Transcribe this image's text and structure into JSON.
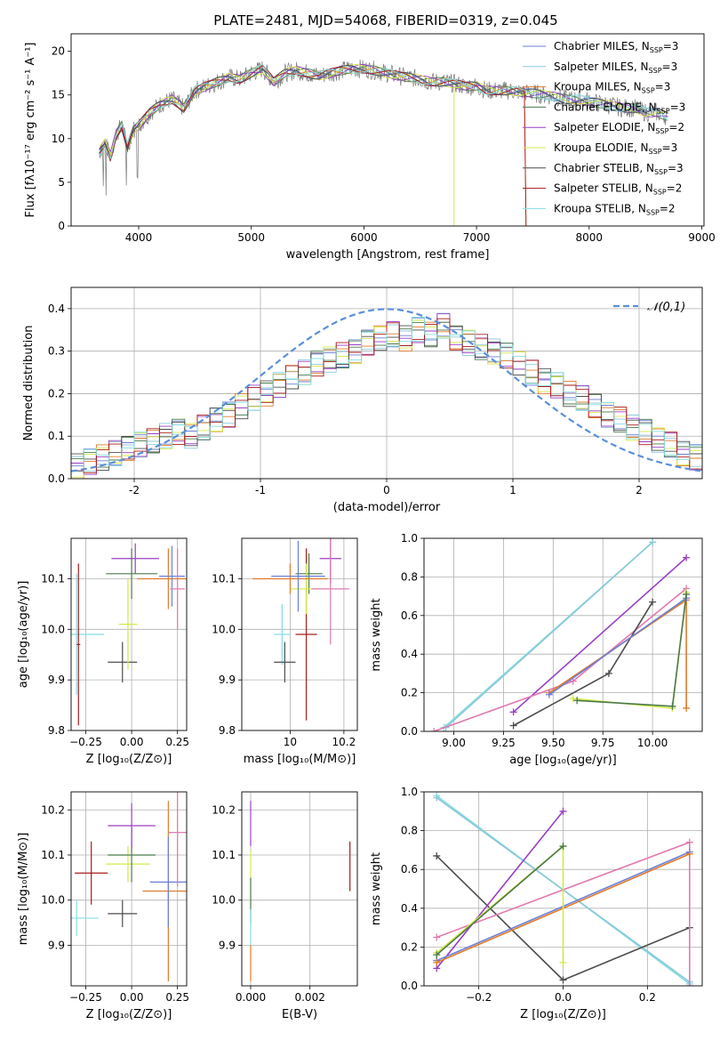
{
  "figure": {
    "title": "PLATE=2481, MJD=54068, FIBERID=0319, z=0.045"
  },
  "chart_data": [
    {
      "type": "line",
      "id": "spectrum",
      "xlabel": "wavelength [Angstrom, rest frame]",
      "ylabel": "Flux [fλ10⁻¹⁷ erg cm⁻² s⁻¹ A⁻¹]",
      "xlim": [
        3400,
        9020
      ],
      "ylim": [
        0,
        22
      ],
      "xticks": [
        4000,
        5000,
        6000,
        7000,
        8000,
        9000
      ],
      "yticks": [
        0,
        5,
        10,
        15,
        20
      ],
      "data_x": [
        3650,
        3700,
        3750,
        3800,
        3850,
        3900,
        3950,
        4000,
        4100,
        4200,
        4300,
        4400,
        4500,
        4600,
        4700,
        4800,
        4900,
        5000,
        5100,
        5200,
        5300,
        5400,
        5500,
        5600,
        5700,
        5800,
        5900,
        6000,
        6100,
        6200,
        6300,
        6400,
        6500,
        6600,
        6700,
        6800,
        6900,
        7000,
        7100,
        7200,
        7300,
        7400,
        7500,
        7600,
        7700,
        7800,
        7900,
        8000,
        8100,
        8200,
        8300,
        8400,
        8500,
        8600,
        8700
      ],
      "data_y": [
        8.5,
        9.5,
        8.0,
        10.5,
        11.5,
        9.0,
        11.0,
        11.5,
        13.0,
        14.0,
        14.5,
        13.5,
        15.5,
        16.0,
        16.5,
        17.0,
        16.8,
        17.5,
        18.0,
        16.5,
        17.5,
        17.8,
        17.5,
        17.2,
        17.5,
        17.8,
        18.0,
        18.0,
        17.8,
        17.5,
        17.2,
        17.0,
        16.8,
        16.5,
        16.5,
        16.3,
        16.0,
        16.0,
        15.5,
        15.5,
        15.5,
        15.3,
        15.2,
        15.0,
        14.8,
        14.5,
        14.5,
        14.3,
        14.0,
        13.8,
        13.5,
        13.5,
        13.0,
        13.0,
        12.5
      ],
      "legend_position": "top-right",
      "legend": [
        {
          "label": "Chabrier MILES, N",
          "sub": "SSP",
          "suffix": "=3",
          "color": "#6b7fd7"
        },
        {
          "label": "Salpeter MILES, N",
          "sub": "SSP",
          "suffix": "=3",
          "color": "#8cc8d8"
        },
        {
          "label": "Kroupa MILES, N",
          "sub": "SSP",
          "suffix": "=3",
          "color": "#e07b2a"
        },
        {
          "label": "Chabrier ELODIE, N",
          "sub": "SSP",
          "suffix": "=3",
          "color": "#4a7a4a"
        },
        {
          "label": "Salpeter ELODIE, N",
          "sub": "SSP",
          "suffix": "=2",
          "color": "#9a3fc4"
        },
        {
          "label": "Kroupa ELODIE, N",
          "sub": "SSP",
          "suffix": "=3",
          "color": "#d6e84a"
        },
        {
          "label": "Chabrier STELIB, N",
          "sub": "SSP",
          "suffix": "=3",
          "color": "#4d4d4d"
        },
        {
          "label": "Salpeter STELIB, N",
          "sub": "SSP",
          "suffix": "=2",
          "color": "#a81a1a"
        },
        {
          "label": "Kroupa STELIB, N",
          "sub": "SSP",
          "suffix": "=2",
          "color": "#86dde0"
        }
      ]
    },
    {
      "type": "histogram",
      "id": "residuals",
      "xlabel": "(data-model)/error",
      "ylabel": "Normed distribution",
      "xlim": [
        -2.5,
        2.5
      ],
      "ylim": [
        0,
        0.45
      ],
      "xticks": [
        -2,
        -1,
        0,
        1,
        2
      ],
      "yticks": [
        0.0,
        0.1,
        0.2,
        0.3,
        0.4
      ],
      "legend_label": "𝒩(0,1)",
      "legend_position": "top-right",
      "bin_edges_start": -2.5,
      "bin_width": 0.1,
      "counts": [
        0.03,
        0.04,
        0.05,
        0.06,
        0.07,
        0.08,
        0.09,
        0.1,
        0.11,
        0.1,
        0.12,
        0.14,
        0.15,
        0.17,
        0.19,
        0.2,
        0.22,
        0.24,
        0.25,
        0.27,
        0.28,
        0.29,
        0.3,
        0.32,
        0.33,
        0.34,
        0.33,
        0.35,
        0.34,
        0.36,
        0.33,
        0.32,
        0.31,
        0.3,
        0.29,
        0.27,
        0.25,
        0.23,
        0.22,
        0.2,
        0.19,
        0.17,
        0.15,
        0.14,
        0.12,
        0.11,
        0.09,
        0.08,
        0.06,
        0.05
      ]
    },
    {
      "type": "errorbar",
      "id": "age-vs-Z",
      "xlabel": "Z [log₁₀(Z/Z⊙)]",
      "ylabel": "age  [log₁₀(age/yr)]",
      "xlim": [
        -0.33,
        0.3
      ],
      "ylim": [
        9.8,
        10.18
      ],
      "xticks": [
        -0.25,
        0.0,
        0.25
      ],
      "xticklabels": [
        "−0.25",
        "0.00",
        "0.25"
      ],
      "yticks": [
        9.8,
        9.9,
        10.0,
        10.1
      ],
      "points": [
        {
          "x": -0.3,
          "y": 9.99,
          "xerr": 0.15,
          "yerr": 0.12,
          "color": "#86dde0"
        },
        {
          "x": -0.05,
          "y": 9.935,
          "xerr": 0.08,
          "yerr": 0.04,
          "color": "#4d4d4d"
        },
        {
          "x": -0.02,
          "y": 10.01,
          "xerr": 0.05,
          "yerr": 0.09,
          "color": "#d6e84a"
        },
        {
          "x": 0.02,
          "y": 10.14,
          "xerr": 0.13,
          "yerr": 0.03,
          "color": "#9a3fc4"
        },
        {
          "x": 0.0,
          "y": 10.11,
          "xerr": 0.14,
          "yerr": 0.05,
          "color": "#4a7a4a"
        },
        {
          "x": 0.2,
          "y": 10.1,
          "xerr": 0.17,
          "yerr": 0.06,
          "color": "#e07b2a"
        },
        {
          "x": 0.22,
          "y": 10.105,
          "xerr": 0.07,
          "yerr": 0.06,
          "color": "#6b7fd7"
        },
        {
          "x": 0.25,
          "y": 10.08,
          "xerr": 0.04,
          "yerr": 0.08,
          "color": "#e07ab0"
        },
        {
          "x": -0.29,
          "y": 9.97,
          "xerr": 0.01,
          "yerr": 0.16,
          "color": "#a81a1a"
        }
      ]
    },
    {
      "type": "errorbar",
      "id": "age-vs-mass",
      "xlabel": "mass [log₁₀(M/M⊙)]",
      "ylabel": "",
      "xlim": [
        9.82,
        10.25
      ],
      "ylim": [
        9.8,
        10.18
      ],
      "xticks": [
        10.0,
        10.2
      ],
      "yticks": [
        9.8,
        9.9,
        10.0,
        10.1
      ],
      "points": [
        {
          "x": 9.97,
          "y": 9.99,
          "xerr": 0.03,
          "yerr": 0.06,
          "color": "#86dde0"
        },
        {
          "x": 9.98,
          "y": 9.935,
          "xerr": 0.04,
          "yerr": 0.04,
          "color": "#4d4d4d"
        },
        {
          "x": 10.06,
          "y": 9.99,
          "xerr": 0.04,
          "yerr": 0.17,
          "color": "#a81a1a"
        },
        {
          "x": 10.15,
          "y": 10.14,
          "xerr": 0.04,
          "yerr": 0.05,
          "color": "#9a3fc4"
        },
        {
          "x": 10.07,
          "y": 10.11,
          "xerr": 0.05,
          "yerr": 0.04,
          "color": "#4a7a4a"
        },
        {
          "x": 10.06,
          "y": 10.08,
          "xerr": 0.06,
          "yerr": 0.05,
          "color": "#d6e84a"
        },
        {
          "x": 10.0,
          "y": 10.1,
          "xerr": 0.14,
          "yerr": 0.03,
          "color": "#e07b2a"
        },
        {
          "x": 10.03,
          "y": 10.105,
          "xerr": 0.1,
          "yerr": 0.07,
          "color": "#6b7fd7"
        },
        {
          "x": 10.15,
          "y": 10.08,
          "xerr": 0.07,
          "yerr": 0.11,
          "color": "#e07ab0"
        }
      ]
    },
    {
      "type": "line",
      "id": "weight-vs-age",
      "xlabel": "age  [log₁₀(age/yr)]",
      "ylabel": "mass weight",
      "xlim": [
        8.85,
        10.25
      ],
      "ylim": [
        0,
        1
      ],
      "xticks": [
        9.0,
        9.25,
        9.5,
        9.75,
        10.0
      ],
      "xticklabels": [
        "9.00",
        "9.25",
        "9.50",
        "9.75",
        "10.00"
      ],
      "yticks": [
        0.0,
        0.2,
        0.4,
        0.6,
        0.8,
        1.0
      ],
      "series": [
        {
          "color": "#86dde0",
          "x": [
            8.95,
            10.0
          ],
          "y": [
            0.02,
            0.98
          ]
        },
        {
          "color": "#8cc8d8",
          "x": [
            8.96,
            10.0
          ],
          "y": [
            0.02,
            0.98
          ]
        },
        {
          "color": "#9a3fc4",
          "x": [
            9.3,
            10.17
          ],
          "y": [
            0.1,
            0.9
          ]
        },
        {
          "color": "#e07ab0",
          "x": [
            8.9,
            9.6,
            10.17
          ],
          "y": [
            0.0,
            0.26,
            0.74
          ]
        },
        {
          "color": "#4d4d4d",
          "x": [
            9.3,
            9.78,
            10.0
          ],
          "y": [
            0.03,
            0.3,
            0.67
          ]
        },
        {
          "color": "#e07b2a",
          "x": [
            9.48,
            10.17,
            10.17
          ],
          "y": [
            0.2,
            0.68,
            0.12
          ]
        },
        {
          "color": "#6b7fd7",
          "x": [
            9.48,
            10.17
          ],
          "y": [
            0.19,
            0.69
          ]
        },
        {
          "color": "#d6e84a",
          "x": [
            9.6,
            10.1,
            10.17
          ],
          "y": [
            0.17,
            0.12,
            0.72
          ]
        },
        {
          "color": "#4a7a4a",
          "x": [
            9.62,
            10.1,
            10.17
          ],
          "y": [
            0.16,
            0.13,
            0.71
          ]
        }
      ]
    },
    {
      "type": "errorbar",
      "id": "mass-vs-Z",
      "xlabel": "Z [log₁₀(Z/Z⊙)]",
      "ylabel": "mass [log₁₀(M/M⊙)]",
      "xlim": [
        -0.33,
        0.3
      ],
      "ylim": [
        9.81,
        10.24
      ],
      "xticks": [
        -0.25,
        0.0,
        0.25
      ],
      "xticklabels": [
        "−0.25",
        "0.00",
        "0.25"
      ],
      "yticks": [
        9.9,
        10.0,
        10.1,
        10.2
      ],
      "points": [
        {
          "x": -0.3,
          "y": 9.96,
          "xerr": 0.12,
          "yerr": 0.04,
          "color": "#86dde0"
        },
        {
          "x": -0.22,
          "y": 10.06,
          "xerr": 0.09,
          "yerr": 0.07,
          "color": "#a81a1a"
        },
        {
          "x": -0.05,
          "y": 9.97,
          "xerr": 0.08,
          "yerr": 0.03,
          "color": "#4d4d4d"
        },
        {
          "x": -0.02,
          "y": 10.08,
          "xerr": 0.12,
          "yerr": 0.04,
          "color": "#d6e84a"
        },
        {
          "x": 0.0,
          "y": 10.1,
          "xerr": 0.13,
          "yerr": 0.06,
          "color": "#4a7a4a"
        },
        {
          "x": 0.0,
          "y": 10.165,
          "xerr": 0.13,
          "yerr": 0.05,
          "color": "#9a3fc4"
        },
        {
          "x": 0.2,
          "y": 10.02,
          "xerr": 0.14,
          "yerr": 0.2,
          "color": "#e07b2a"
        },
        {
          "x": 0.2,
          "y": 10.04,
          "xerr": 0.1,
          "yerr": 0.1,
          "color": "#6b7fd7"
        },
        {
          "x": 0.25,
          "y": 10.15,
          "xerr": 0.05,
          "yerr": 0.12,
          "color": "#e07ab0"
        }
      ]
    },
    {
      "type": "errorbar",
      "id": "mass-vs-ebv",
      "xlabel": "E(B-V)",
      "ylabel": "",
      "xlim": [
        -0.0003,
        0.0036
      ],
      "ylim": [
        9.81,
        10.24
      ],
      "xticks": [
        0.0,
        0.002
      ],
      "xticklabels": [
        "0.000",
        "0.002"
      ],
      "yticks": [
        9.9,
        10.0,
        10.1,
        10.2
      ],
      "points": [
        {
          "x": 0.0,
          "y": 10.17,
          "xerr": 0,
          "yerr": 0.05,
          "color": "#9a3fc4"
        },
        {
          "x": 0.0,
          "y": 10.0,
          "xerr": 0,
          "yerr": 0.05,
          "color": "#4a7a4a"
        },
        {
          "x": 0.0,
          "y": 9.86,
          "xerr": 0,
          "yerr": 0.04,
          "color": "#e07b2a"
        },
        {
          "x": 0.0,
          "y": 9.94,
          "xerr": 0,
          "yerr": 0.04,
          "color": "#86dde0"
        },
        {
          "x": 0.0,
          "y": 10.08,
          "xerr": 0,
          "yerr": 0.03,
          "color": "#d6e84a"
        },
        {
          "x": 0.00335,
          "y": 10.075,
          "xerr": 0,
          "yerr": 0.055,
          "color": "#a81a1a"
        }
      ]
    },
    {
      "type": "line",
      "id": "weight-vs-Z",
      "xlabel": "Z [log₁₀(Z/Z⊙)]",
      "ylabel": "mass weight",
      "xlim": [
        -0.33,
        0.33
      ],
      "ylim": [
        0,
        1
      ],
      "xticks": [
        -0.2,
        0.0,
        0.2
      ],
      "xticklabels": [
        "−0.2",
        "0.0",
        "0.2"
      ],
      "yticks": [
        0.0,
        0.2,
        0.4,
        0.6,
        0.8,
        1.0
      ],
      "series": [
        {
          "color": "#86dde0",
          "x": [
            -0.3,
            0.3
          ],
          "y": [
            0.98,
            0.01
          ]
        },
        {
          "color": "#8cc8d8",
          "x": [
            -0.3,
            0.3
          ],
          "y": [
            0.97,
            0.02
          ]
        },
        {
          "color": "#4d4d4d",
          "x": [
            -0.3,
            0.0,
            0.3
          ],
          "y": [
            0.67,
            0.03,
            0.3
          ]
        },
        {
          "color": "#9a3fc4",
          "x": [
            -0.3,
            0.0
          ],
          "y": [
            0.09,
            0.9
          ]
        },
        {
          "color": "#e07ab0",
          "x": [
            -0.3,
            0.3,
            0.3
          ],
          "y": [
            0.25,
            0.74,
            0.0
          ]
        },
        {
          "color": "#6b7fd7",
          "x": [
            -0.3,
            0.3
          ],
          "y": [
            0.13,
            0.69
          ]
        },
        {
          "color": "#e07b2a",
          "x": [
            -0.3,
            0.3
          ],
          "y": [
            0.12,
            0.68
          ]
        },
        {
          "color": "#d6e84a",
          "x": [
            -0.3,
            0.0,
            0.0
          ],
          "y": [
            0.17,
            0.72,
            0.12
          ]
        },
        {
          "color": "#4a7a4a",
          "x": [
            -0.3,
            0.0
          ],
          "y": [
            0.16,
            0.72
          ]
        }
      ]
    }
  ]
}
